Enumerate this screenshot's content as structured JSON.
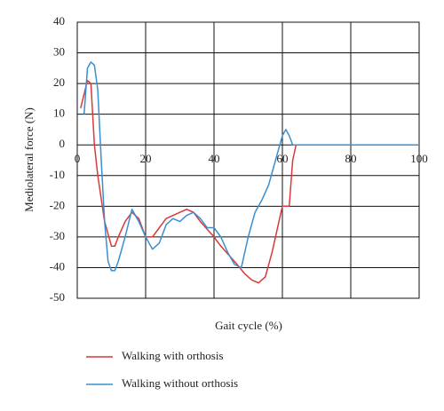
{
  "chart_data": {
    "type": "line",
    "xlabel": "Gait cycle (%)",
    "ylabel": "Mediolateral force (N)",
    "xlim": [
      0,
      100
    ],
    "xticks": [
      0,
      20,
      40,
      60,
      80,
      100
    ],
    "ylim": [
      -50,
      40
    ],
    "yticks": [
      -50,
      -40,
      -30,
      -20,
      -10,
      0,
      10,
      20,
      30,
      40
    ],
    "grid": true,
    "series": [
      {
        "name": "Walking with orthosis",
        "color": "#d9393b",
        "x": [
          1,
          3,
          4,
          5,
          6,
          8,
          10,
          11,
          12,
          14,
          16,
          18,
          20,
          22,
          24,
          26,
          28,
          30,
          32,
          34,
          36,
          40,
          42,
          46,
          49,
          51,
          53,
          55,
          57,
          59,
          60,
          62,
          63,
          64,
          100
        ],
        "values": [
          12,
          21,
          20,
          0,
          -10,
          -25,
          -33,
          -33,
          -30,
          -25,
          -22,
          -24,
          -30,
          -30,
          -27,
          -24,
          -23,
          -22,
          -21,
          -22,
          -25,
          -30,
          -33,
          -38,
          -42,
          -44,
          -45,
          -43,
          -35,
          -25,
          -20,
          -20,
          -5,
          0,
          0
        ]
      },
      {
        "name": "Walking without orthosis",
        "color": "#3a8fd0",
        "x": [
          2,
          3,
          4,
          5,
          6,
          7,
          8,
          9,
          10,
          11,
          12,
          14,
          16,
          18,
          20,
          22,
          24,
          26,
          28,
          30,
          32,
          34,
          36,
          38,
          40,
          42,
          44,
          46,
          48,
          50,
          52,
          54,
          56,
          58,
          60,
          61,
          62,
          63,
          100
        ],
        "values": [
          10,
          25,
          27,
          26,
          18,
          -5,
          -25,
          -38,
          -41,
          -41,
          -38,
          -30,
          -21,
          -25,
          -30,
          -34,
          -32,
          -26,
          -24,
          -25,
          -23,
          -22,
          -24,
          -27,
          -27,
          -30,
          -35,
          -39,
          -40,
          -30,
          -22,
          -18,
          -13,
          -5,
          3,
          5,
          3,
          0,
          0
        ]
      }
    ]
  }
}
